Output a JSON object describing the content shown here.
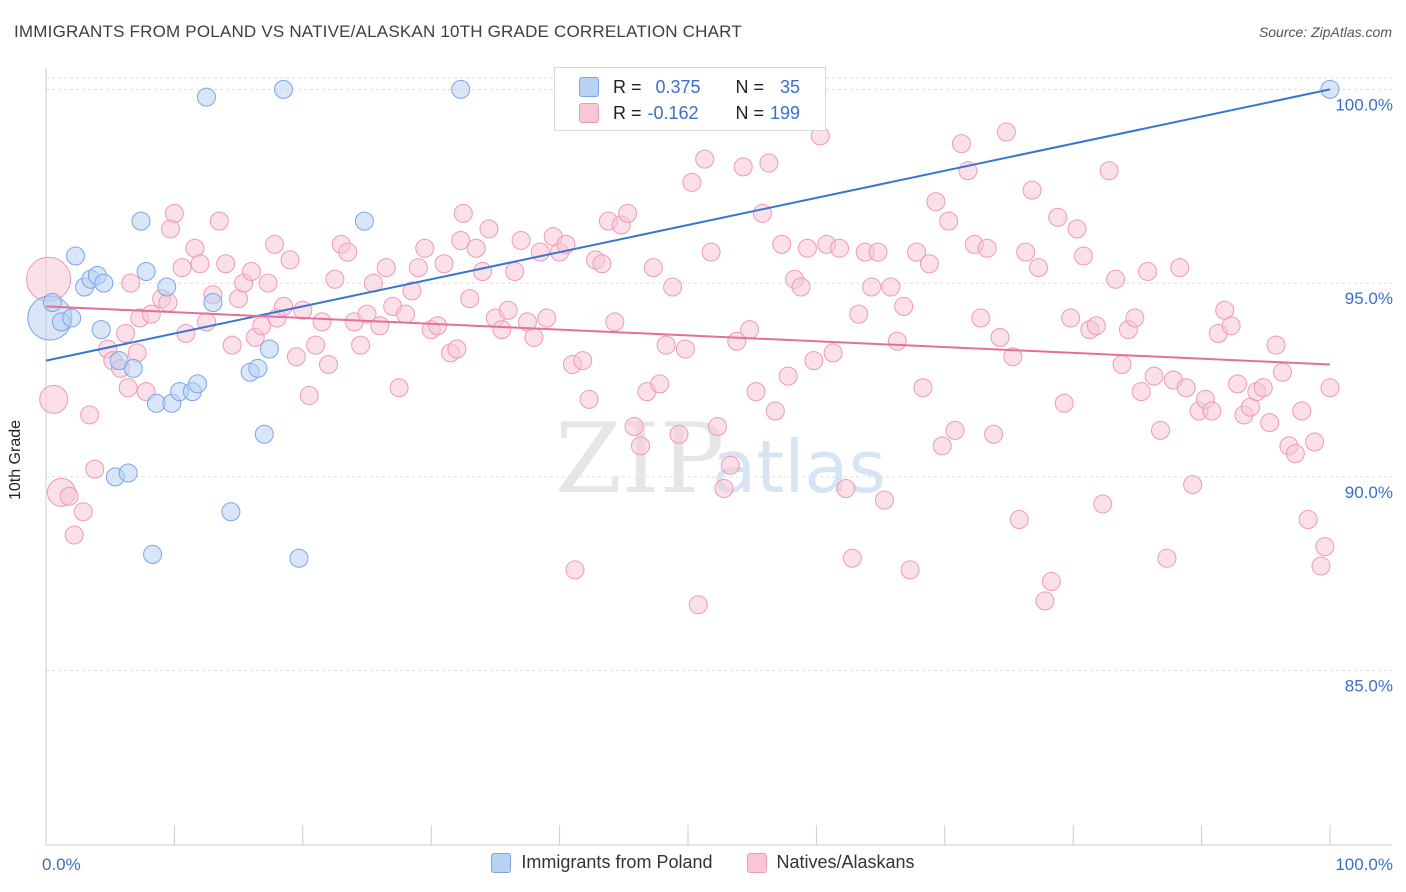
{
  "title": "IMMIGRANTS FROM POLAND VS NATIVE/ALASKAN 10TH GRADE CORRELATION CHART",
  "source": "Source: ZipAtlas.com",
  "watermark": {
    "zip": "ZIP",
    "atlas": "atlas"
  },
  "legend": {
    "r_label": "R =",
    "n_label": "N =",
    "series": [
      {
        "name": "Immigrants from Poland",
        "r": "0.375",
        "n": "35",
        "color": "#7aa6e8"
      },
      {
        "name": "Natives/Alaskans",
        "r": "-0.162",
        "n": "199",
        "color": "#f29bb8"
      }
    ]
  },
  "colors": {
    "blue_fill": "#b9d1f3",
    "blue_stroke": "#7aa6e8",
    "blue_line": "#3a76cf",
    "pink_fill": "#f8c7d7",
    "pink_stroke": "#ee9ab7",
    "pink_line": "#e46f98",
    "axis_text": "#3a6fc9",
    "grid": "#dddddd"
  },
  "chart_data": {
    "type": "scatter",
    "title": "IMMIGRANTS FROM POLAND VS NATIVE/ALASKAN 10TH GRADE CORRELATION CHART",
    "xlabel": "",
    "ylabel": "10th Grade",
    "xlim": [
      0,
      100
    ],
    "ylim": [
      80.5,
      100.5
    ],
    "x_tick_labels": [
      "0.0%",
      "100.0%"
    ],
    "y_ticks": [
      85,
      90,
      95,
      100
    ],
    "y_tick_labels": [
      "85.0%",
      "90.0%",
      "95.0%",
      "100.0%"
    ],
    "grid": "horizontal dashed",
    "legend_position": "top-center",
    "series": [
      {
        "name": "Immigrants from Poland",
        "trend": {
          "x0": 0,
          "y0": 93.0,
          "x1": 100,
          "y1": 100.0
        },
        "points": [
          [
            0.3,
            94.1,
            3
          ],
          [
            0.5,
            94.5,
            1
          ],
          [
            1.2,
            94.0,
            1
          ],
          [
            2.0,
            94.1,
            1
          ],
          [
            2.3,
            95.7,
            1
          ],
          [
            3.0,
            94.9,
            1
          ],
          [
            3.5,
            95.1,
            1
          ],
          [
            4.0,
            95.2,
            1
          ],
          [
            4.3,
            93.8,
            1
          ],
          [
            4.5,
            95.0,
            1
          ],
          [
            5.7,
            93.0,
            1
          ],
          [
            6.8,
            92.8,
            1
          ],
          [
            7.4,
            96.6,
            1
          ],
          [
            7.8,
            95.3,
            1
          ],
          [
            8.3,
            88.0,
            1
          ],
          [
            8.6,
            91.9,
            1
          ],
          [
            9.4,
            94.9,
            1
          ],
          [
            9.8,
            91.9,
            1
          ],
          [
            10.4,
            92.2,
            1
          ],
          [
            11.4,
            92.2,
            1
          ],
          [
            11.8,
            92.4,
            1
          ],
          [
            12.5,
            99.8,
            1
          ],
          [
            13.0,
            94.5,
            1
          ],
          [
            14.4,
            89.1,
            1
          ],
          [
            15.9,
            92.7,
            1
          ],
          [
            16.5,
            92.8,
            1
          ],
          [
            17.0,
            91.1,
            1
          ],
          [
            17.4,
            93.3,
            1
          ],
          [
            18.5,
            100.0,
            1
          ],
          [
            19.7,
            87.9,
            1
          ],
          [
            24.8,
            96.6,
            1
          ],
          [
            32.3,
            100.0,
            1
          ],
          [
            5.4,
            90.0,
            1
          ],
          [
            6.4,
            90.1,
            1
          ],
          [
            100.0,
            100.0,
            1
          ]
        ]
      },
      {
        "name": "Natives/Alaskans",
        "trend": {
          "x0": 0,
          "y0": 94.4,
          "x1": 100,
          "y1": 92.9
        },
        "points": [
          [
            0.2,
            95.1,
            3
          ],
          [
            0.6,
            92.0,
            2
          ],
          [
            1.2,
            89.6,
            2
          ],
          [
            1.8,
            89.5,
            1
          ],
          [
            2.2,
            88.5,
            1
          ],
          [
            2.9,
            89.1,
            1
          ],
          [
            3.4,
            91.6,
            1
          ],
          [
            3.8,
            90.2,
            1
          ],
          [
            4.8,
            93.3,
            1
          ],
          [
            5.2,
            93.0,
            1
          ],
          [
            5.8,
            92.8,
            1
          ],
          [
            6.2,
            93.7,
            1
          ],
          [
            6.4,
            92.3,
            1
          ],
          [
            6.6,
            95.0,
            1
          ],
          [
            7.1,
            93.2,
            1
          ],
          [
            7.3,
            94.1,
            1
          ],
          [
            7.8,
            92.2,
            1
          ],
          [
            8.2,
            94.2,
            1
          ],
          [
            9.0,
            94.6,
            1
          ],
          [
            9.5,
            94.5,
            1
          ],
          [
            9.7,
            96.4,
            1
          ],
          [
            10.0,
            96.8,
            1
          ],
          [
            10.6,
            95.4,
            1
          ],
          [
            10.9,
            93.7,
            1
          ],
          [
            11.6,
            95.9,
            1
          ],
          [
            12.0,
            95.5,
            1
          ],
          [
            12.5,
            94.0,
            1
          ],
          [
            13.0,
            94.7,
            1
          ],
          [
            13.5,
            96.6,
            1
          ],
          [
            14.0,
            95.5,
            1
          ],
          [
            14.5,
            93.4,
            1
          ],
          [
            15.0,
            94.6,
            1
          ],
          [
            15.4,
            95.0,
            1
          ],
          [
            16.0,
            95.3,
            1
          ],
          [
            16.3,
            93.6,
            1
          ],
          [
            16.8,
            93.9,
            1
          ],
          [
            17.3,
            95.0,
            1
          ],
          [
            17.8,
            96.0,
            1
          ],
          [
            18.0,
            94.1,
            1
          ],
          [
            18.5,
            94.4,
            1
          ],
          [
            19.0,
            95.6,
            1
          ],
          [
            19.5,
            93.1,
            1
          ],
          [
            20.0,
            94.3,
            1
          ],
          [
            20.5,
            92.1,
            1
          ],
          [
            21.0,
            93.4,
            1
          ],
          [
            21.5,
            94.0,
            1
          ],
          [
            22.0,
            92.9,
            1
          ],
          [
            22.5,
            95.1,
            1
          ],
          [
            23.0,
            96.0,
            1
          ],
          [
            23.5,
            95.8,
            1
          ],
          [
            24.0,
            94.0,
            1
          ],
          [
            24.5,
            93.4,
            1
          ],
          [
            25.0,
            94.2,
            1
          ],
          [
            25.5,
            95.0,
            1
          ],
          [
            26.0,
            93.9,
            1
          ],
          [
            26.5,
            95.4,
            1
          ],
          [
            27.0,
            94.4,
            1
          ],
          [
            27.5,
            92.3,
            1
          ],
          [
            28.0,
            94.2,
            1
          ],
          [
            28.5,
            94.8,
            1
          ],
          [
            29.0,
            95.4,
            1
          ],
          [
            29.5,
            95.9,
            1
          ],
          [
            30.0,
            93.8,
            1
          ],
          [
            30.5,
            93.9,
            1
          ],
          [
            31.0,
            95.5,
            1
          ],
          [
            31.5,
            93.2,
            1
          ],
          [
            32.0,
            93.3,
            1
          ],
          [
            32.3,
            96.1,
            1
          ],
          [
            32.5,
            96.8,
            1
          ],
          [
            33.0,
            94.6,
            1
          ],
          [
            33.5,
            95.9,
            1
          ],
          [
            34.0,
            95.3,
            1
          ],
          [
            34.5,
            96.4,
            1
          ],
          [
            35.0,
            94.1,
            1
          ],
          [
            35.5,
            93.8,
            1
          ],
          [
            36.0,
            94.3,
            1
          ],
          [
            36.5,
            95.3,
            1
          ],
          [
            37.0,
            96.1,
            1
          ],
          [
            37.5,
            94.0,
            1
          ],
          [
            38.0,
            93.6,
            1
          ],
          [
            38.5,
            95.8,
            1
          ],
          [
            39.0,
            94.1,
            1
          ],
          [
            39.5,
            96.2,
            1
          ],
          [
            40.0,
            95.8,
            1
          ],
          [
            40.5,
            96.0,
            1
          ],
          [
            41.0,
            92.9,
            1
          ],
          [
            41.2,
            87.6,
            1
          ],
          [
            41.8,
            93.0,
            1
          ],
          [
            42.3,
            92.0,
            1
          ],
          [
            42.8,
            95.6,
            1
          ],
          [
            43.3,
            95.5,
            1
          ],
          [
            43.8,
            96.6,
            1
          ],
          [
            44.3,
            94.0,
            1
          ],
          [
            44.8,
            96.5,
            1
          ],
          [
            45.3,
            96.8,
            1
          ],
          [
            45.8,
            91.3,
            1
          ],
          [
            46.3,
            90.8,
            1
          ],
          [
            46.8,
            92.2,
            1
          ],
          [
            47.3,
            95.4,
            1
          ],
          [
            47.8,
            92.4,
            1
          ],
          [
            48.3,
            93.4,
            1
          ],
          [
            48.8,
            94.9,
            1
          ],
          [
            49.3,
            91.1,
            1
          ],
          [
            49.8,
            93.3,
            1
          ],
          [
            50.3,
            97.6,
            1
          ],
          [
            50.8,
            86.7,
            1
          ],
          [
            51.3,
            98.2,
            1
          ],
          [
            51.8,
            95.8,
            1
          ],
          [
            52.3,
            91.3,
            1
          ],
          [
            52.8,
            89.7,
            1
          ],
          [
            53.3,
            90.3,
            1
          ],
          [
            53.8,
            93.5,
            1
          ],
          [
            54.3,
            98.0,
            1
          ],
          [
            54.8,
            93.8,
            1
          ],
          [
            55.3,
            92.2,
            1
          ],
          [
            55.8,
            96.8,
            1
          ],
          [
            56.3,
            98.1,
            1
          ],
          [
            56.8,
            91.7,
            1
          ],
          [
            57.3,
            96.0,
            1
          ],
          [
            57.8,
            92.6,
            1
          ],
          [
            58.3,
            95.1,
            1
          ],
          [
            58.8,
            94.9,
            1
          ],
          [
            59.3,
            95.9,
            1
          ],
          [
            59.8,
            93.0,
            1
          ],
          [
            60.3,
            98.8,
            1
          ],
          [
            60.8,
            96.0,
            1
          ],
          [
            61.3,
            93.2,
            1
          ],
          [
            61.8,
            95.9,
            1
          ],
          [
            62.3,
            89.7,
            1
          ],
          [
            62.8,
            87.9,
            1
          ],
          [
            63.3,
            94.2,
            1
          ],
          [
            63.8,
            95.8,
            1
          ],
          [
            64.3,
            94.9,
            1
          ],
          [
            64.8,
            95.8,
            1
          ],
          [
            65.3,
            89.4,
            1
          ],
          [
            65.8,
            94.9,
            1
          ],
          [
            66.3,
            93.5,
            1
          ],
          [
            66.8,
            94.4,
            1
          ],
          [
            67.3,
            87.6,
            1
          ],
          [
            67.8,
            95.8,
            1
          ],
          [
            68.3,
            92.3,
            1
          ],
          [
            68.8,
            95.5,
            1
          ],
          [
            69.3,
            97.1,
            1
          ],
          [
            69.8,
            90.8,
            1
          ],
          [
            70.3,
            96.6,
            1
          ],
          [
            70.8,
            91.2,
            1
          ],
          [
            71.3,
            98.6,
            1
          ],
          [
            71.8,
            97.9,
            1
          ],
          [
            72.3,
            96.0,
            1
          ],
          [
            72.8,
            94.1,
            1
          ],
          [
            73.3,
            95.9,
            1
          ],
          [
            73.8,
            91.1,
            1
          ],
          [
            74.3,
            93.6,
            1
          ],
          [
            74.8,
            98.9,
            1
          ],
          [
            75.3,
            93.1,
            1
          ],
          [
            75.8,
            88.9,
            1
          ],
          [
            76.3,
            95.8,
            1
          ],
          [
            76.8,
            97.4,
            1
          ],
          [
            77.3,
            95.4,
            1
          ],
          [
            77.8,
            86.8,
            1
          ],
          [
            78.3,
            87.3,
            1
          ],
          [
            78.8,
            96.7,
            1
          ],
          [
            79.3,
            91.9,
            1
          ],
          [
            79.8,
            94.1,
            1
          ],
          [
            80.3,
            96.4,
            1
          ],
          [
            80.8,
            95.7,
            1
          ],
          [
            81.3,
            93.8,
            1
          ],
          [
            81.8,
            93.9,
            1
          ],
          [
            82.3,
            89.3,
            1
          ],
          [
            82.8,
            97.9,
            1
          ],
          [
            83.3,
            95.1,
            1
          ],
          [
            83.8,
            92.9,
            1
          ],
          [
            84.3,
            93.8,
            1
          ],
          [
            84.8,
            94.1,
            1
          ],
          [
            85.3,
            92.2,
            1
          ],
          [
            85.8,
            95.3,
            1
          ],
          [
            86.3,
            92.6,
            1
          ],
          [
            86.8,
            91.2,
            1
          ],
          [
            87.3,
            87.9,
            1
          ],
          [
            87.8,
            92.5,
            1
          ],
          [
            88.3,
            95.4,
            1
          ],
          [
            88.8,
            92.3,
            1
          ],
          [
            89.3,
            89.8,
            1
          ],
          [
            89.8,
            91.7,
            1
          ],
          [
            90.3,
            92.0,
            1
          ],
          [
            90.8,
            91.7,
            1
          ],
          [
            91.3,
            93.7,
            1
          ],
          [
            91.8,
            94.3,
            1
          ],
          [
            92.3,
            93.9,
            1
          ],
          [
            92.8,
            92.4,
            1
          ],
          [
            93.3,
            91.6,
            1
          ],
          [
            93.8,
            91.8,
            1
          ],
          [
            94.3,
            92.2,
            1
          ],
          [
            94.8,
            92.3,
            1
          ],
          [
            95.3,
            91.4,
            1
          ],
          [
            95.8,
            93.4,
            1
          ],
          [
            96.3,
            92.7,
            1
          ],
          [
            96.8,
            90.8,
            1
          ],
          [
            97.3,
            90.6,
            1
          ],
          [
            97.8,
            91.7,
            1
          ],
          [
            98.3,
            88.9,
            1
          ],
          [
            98.8,
            90.9,
            1
          ],
          [
            99.3,
            87.7,
            1
          ],
          [
            99.6,
            88.2,
            1
          ],
          [
            100.0,
            92.3,
            1
          ]
        ]
      }
    ]
  }
}
